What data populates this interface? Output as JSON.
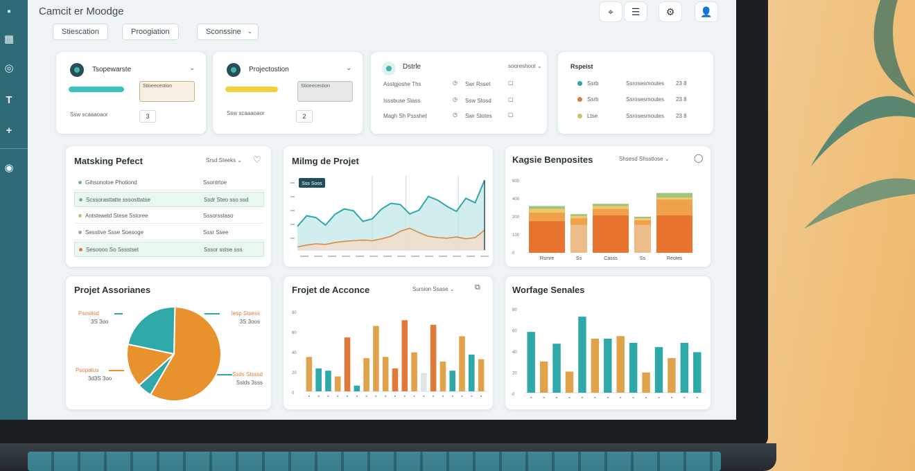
{
  "app": {
    "title": "Camcit er Moodge"
  },
  "filters": [
    {
      "label": "Stiescation"
    },
    {
      "label": "Proogiation"
    },
    {
      "label": "Sconssine"
    }
  ],
  "toolbar": {
    "icons": [
      "location-icon",
      "list-icon",
      "settings-icon",
      "profile-icon"
    ]
  },
  "sidebar": {
    "items": [
      {
        "icon": "home-icon",
        "glyph": "▪"
      },
      {
        "icon": "briefcase-icon",
        "glyph": "▦"
      },
      {
        "icon": "target-icon",
        "glyph": "◎"
      },
      {
        "icon": "text-icon",
        "glyph": "T"
      },
      {
        "icon": "add-icon",
        "glyph": "+"
      },
      {
        "icon": "settings-icon",
        "glyph": "◉"
      }
    ]
  },
  "top_cards": [
    {
      "title": "Tsopewarste",
      "box_text": "Stioeecestion",
      "count": "3",
      "caption": "Ssw scaaaoaor"
    },
    {
      "title": "Projectostion",
      "box_text": "Stioeecestion",
      "count": "2",
      "caption": "Ssw scaaaoaor"
    },
    {
      "title": "Dstrle",
      "dropdown": "sooreshoot",
      "rows": [
        {
          "label": "Asstgjoshe Ths",
          "value": "Swr Rsset"
        },
        {
          "label": "Isssbuse Slass",
          "value": "Ssw Stosd"
        },
        {
          "label": "Magh Sh Pssshet",
          "value": "Swr Stotes"
        }
      ]
    },
    {
      "title": "Rspeist",
      "rows": [
        {
          "label": "Ssrb",
          "value": "Ssrosesmoutes",
          "num": "23 8"
        },
        {
          "label": "Ssrb",
          "value": "Ssrosesmoutes",
          "num": "23 8"
        },
        {
          "label": "Ltse",
          "value": "Ssrosesmoutes",
          "num": "23 8"
        }
      ]
    }
  ],
  "marketing": {
    "title": "Matsking Pefect",
    "control": "Srsd Steeks",
    "rows": [
      {
        "left": "Gihsonotoe Photiond",
        "right": "Ssontrtoe"
      },
      {
        "left": "Scssorasttatte sssosttatse",
        "right": "Ssdr Steo sso ssd"
      },
      {
        "left": "Antsteaetd Stese Sstoree",
        "right": "Sssorsstaso"
      },
      {
        "left": "Sesstive Ssse Soesoge",
        "right": "Sssr Ssee"
      },
      {
        "left": "Sesoooo So Sssstset",
        "right": "Sssor sstse sss"
      }
    ],
    "colors": [
      "#7fb08a",
      "#6fb58a",
      "#b9c57a",
      "#9aa3a6",
      "#e07a3b"
    ]
  },
  "mining": {
    "title": "Milmg de Projet",
    "tag": "Sss Soos"
  },
  "kagie": {
    "title": "Kagsie Benposites",
    "control": "Shsesd Shsstlose"
  },
  "assoc": {
    "title": "Projet Assorianes",
    "labels": [
      {
        "name": "Psosiisd",
        "value": "3S 3oo"
      },
      {
        "name": "Iesp Stsess",
        "value": "3S 3oos"
      },
      {
        "name": "Psopatus",
        "value": "3d3S 3oo"
      },
      {
        "name": "Ssds Stsssd",
        "value": "Sslds 3sss"
      }
    ]
  },
  "acconce": {
    "title": "Frojet de Acconce",
    "control": "Sursion Ssase"
  },
  "workage": {
    "title": "Worfage Senales"
  },
  "chart_data": [
    {
      "type": "line",
      "series": [
        {
          "name": "",
          "values": [
            38,
            55,
            52,
            40,
            57,
            66,
            63,
            46,
            50,
            66,
            75,
            73,
            58,
            64,
            86,
            80,
            70,
            62,
            83,
            76,
            112
          ]
        },
        {
          "name": "",
          "values": [
            5,
            8,
            10,
            9,
            12,
            14,
            15,
            16,
            15,
            18,
            22,
            30,
            35,
            28,
            22,
            20,
            19,
            21,
            18,
            20,
            32
          ]
        }
      ],
      "colors": [
        "#2ea8a8",
        "#d98a46"
      ],
      "ylim": [
        0,
        120
      ]
    },
    {
      "type": "bar",
      "stacked": true,
      "categories": [
        "Rsmre",
        "Ss",
        "Casss",
        "Ss",
        "Reotes"
      ],
      "series": [
        {
          "name": "",
          "values": [
            170,
            150,
            200,
            150,
            200
          ]
        },
        {
          "name": "",
          "values": [
            45,
            35,
            35,
            25,
            85
          ]
        },
        {
          "name": "",
          "values": [
            20,
            12,
            15,
            10,
            10
          ]
        },
        {
          "name": "",
          "values": [
            15,
            10,
            12,
            8,
            25
          ]
        }
      ],
      "colors": [
        "#e8732e",
        "#efa24a",
        "#f0c86a",
        "#9fc47a"
      ],
      "pale_columns": [
        1,
        3
      ],
      "pale_color": "#eebc88",
      "yticks": [
        "600",
        "400",
        "200",
        "100",
        "0"
      ],
      "ylim": [
        0,
        400
      ]
    },
    {
      "type": "pie",
      "values": [
        58,
        22,
        15,
        5
      ],
      "colors": [
        "#e8922e",
        "#2ea8a8",
        "#e8922e",
        "#2ea8a8"
      ]
    },
    {
      "type": "bar",
      "categories": [
        "",
        "",
        "",
        "",
        "",
        "",
        "",
        "",
        "",
        "",
        "",
        "",
        "",
        "",
        "",
        "",
        "",
        "",
        ""
      ],
      "values": [
        30,
        20,
        18,
        13,
        47,
        5,
        29,
        57,
        30,
        20,
        62,
        34,
        16,
        58,
        26,
        18,
        48,
        32,
        28
      ],
      "colors": [
        "#e0a24a",
        "#2ea8a8",
        "#2ea8a8",
        "#e0a24a",
        "#e07a3b",
        "#2ea8a8",
        "#e0a24a",
        "#e0a24a",
        "#e0a24a",
        "#e07a3b",
        "#e07a3b",
        "#e0a24a",
        "#dfe4e4",
        "#e07a3b",
        "#e0a24a",
        "#2ea8a8",
        "#e0a24a",
        "#2ea8a8",
        "#e0a24a"
      ],
      "yticks": [
        "80",
        "60",
        "40",
        "20",
        "0"
      ],
      "ylim": [
        0,
        70
      ]
    },
    {
      "type": "bar",
      "categories": [
        "",
        "",
        "",
        "",
        "",
        "",
        "",
        "",
        "",
        "",
        "",
        "",
        "",
        ""
      ],
      "values": [
        72,
        37,
        58,
        25,
        90,
        64,
        64,
        67,
        59,
        24,
        54,
        41,
        59,
        48
      ],
      "colors": [
        "#2ea8a8",
        "#e0a24a",
        "#2ea8a8",
        "#e0a24a",
        "#2ea8a8",
        "#e0a24a",
        "#2ea8a8",
        "#e0a24a",
        "#2ea8a8",
        "#e0a24a",
        "#2ea8a8",
        "#e0a24a",
        "#2ea8a8",
        "#2ea8a8"
      ],
      "yticks": [
        "80",
        "60",
        "40",
        "20",
        "0"
      ],
      "ylim": [
        0,
        100
      ]
    }
  ]
}
